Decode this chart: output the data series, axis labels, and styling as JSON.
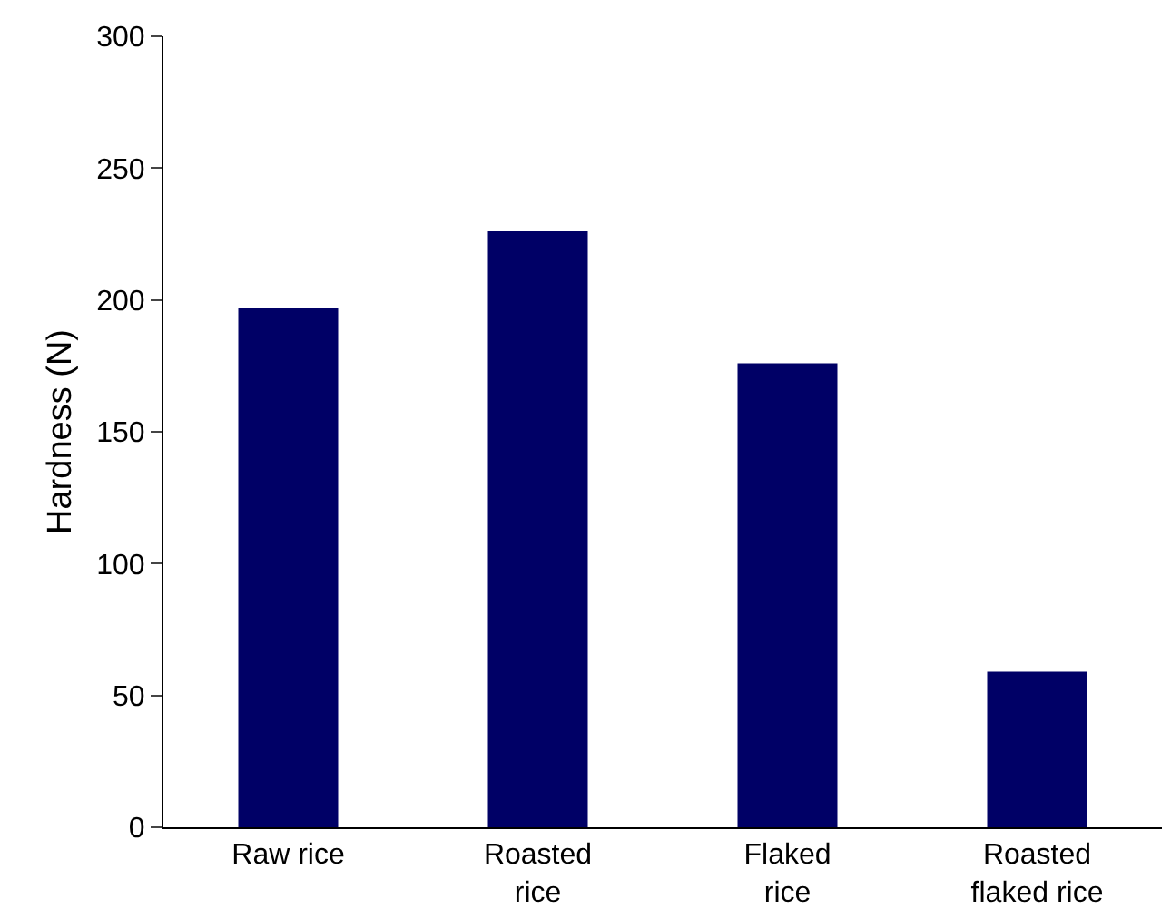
{
  "chart_data": {
    "type": "bar",
    "ylabel": "Hardness (N)",
    "categories": [
      "Raw rice",
      "Roasted\nrice",
      "Flaked\nrice",
      "Roasted\nflaked rice"
    ],
    "values": [
      197,
      226,
      176,
      59
    ],
    "color": "#000066",
    "ylim": [
      0,
      300
    ],
    "yticks": [
      0,
      50,
      100,
      150,
      200,
      250,
      300
    ]
  }
}
